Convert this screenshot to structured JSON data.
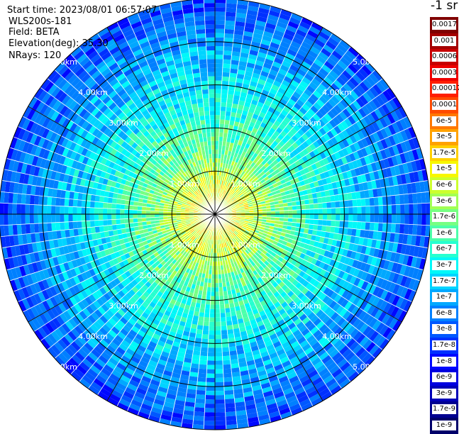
{
  "info": {
    "start_time": "Start time: 2023/08/01 06:57:07",
    "instrument": "WLS200s-181",
    "field": "Field: BETA",
    "elevation": "Elevation(deg): 35.30",
    "nrays": "NRays: 120"
  },
  "colorbar": {
    "units": "-1 sr",
    "entries": [
      {
        "label": "0.0017",
        "color": "#800000"
      },
      {
        "label": "0.001",
        "color": "#a40000"
      },
      {
        "label": "0.0006",
        "color": "#c80000"
      },
      {
        "label": "0.0003",
        "color": "#ee0000"
      },
      {
        "label": "0.00017",
        "color": "#ff1e00"
      },
      {
        "label": "0.0001",
        "color": "#ff4a00"
      },
      {
        "label": "6e-5",
        "color": "#ff7800"
      },
      {
        "label": "3e-5",
        "color": "#ffa200"
      },
      {
        "label": "1.7e-5",
        "color": "#ffd000"
      },
      {
        "label": "1e-5",
        "color": "#f7f700"
      },
      {
        "label": "6e-6",
        "color": "#ccff2e"
      },
      {
        "label": "3e-6",
        "color": "#a2ff54"
      },
      {
        "label": "1.7e-6",
        "color": "#76ff82"
      },
      {
        "label": "1e-6",
        "color": "#4cffaa"
      },
      {
        "label": "6e-7",
        "color": "#26ffd0"
      },
      {
        "label": "3e-7",
        "color": "#00f8f8"
      },
      {
        "label": "1.7e-7",
        "color": "#00d4ff"
      },
      {
        "label": "1e-7",
        "color": "#00a8ff"
      },
      {
        "label": "6e-8",
        "color": "#0080ff"
      },
      {
        "label": "3e-8",
        "color": "#0058ff"
      },
      {
        "label": "1.7e-8",
        "color": "#0030ff"
      },
      {
        "label": "1e-8",
        "color": "#0008ff"
      },
      {
        "label": "6e-9",
        "color": "#0000e0"
      },
      {
        "label": "3e-9",
        "color": "#0000b8"
      },
      {
        "label": "1.7e-9",
        "color": "#000090"
      },
      {
        "label": "1e-9",
        "color": "#00006a"
      }
    ]
  },
  "chart_data": {
    "type": "heatmap",
    "projection": "polar PPI",
    "field": "BETA",
    "units": "-1 sr",
    "nrays": 120,
    "elevation_deg": 35.3,
    "max_range_km": 5.0,
    "range_rings_km": [
      1,
      2,
      3,
      4,
      5
    ],
    "range_ring_labels": [
      "1.00km",
      "2.00km",
      "3.00km",
      "4.00km",
      "5.00km"
    ],
    "azimuth_lines_deg": [
      0,
      30,
      60,
      90,
      120,
      150,
      180,
      210,
      240,
      270,
      300,
      330
    ],
    "radial_profile": [
      {
        "range_km": 0.5,
        "beta": 6e-06
      },
      {
        "range_km": 1.0,
        "beta": 3e-06
      },
      {
        "range_km": 1.5,
        "beta": 1e-06
      },
      {
        "range_km": 2.0,
        "beta": 6e-07
      },
      {
        "range_km": 2.5,
        "beta": 3e-07
      },
      {
        "range_km": 3.0,
        "beta": 1.7e-07
      },
      {
        "range_km": 3.5,
        "beta": 1e-07
      },
      {
        "range_km": 4.0,
        "beta": 6e-08
      },
      {
        "range_km": 4.5,
        "beta": 3e-08
      },
      {
        "range_km": 5.0,
        "beta": 1.7e-08
      }
    ]
  }
}
